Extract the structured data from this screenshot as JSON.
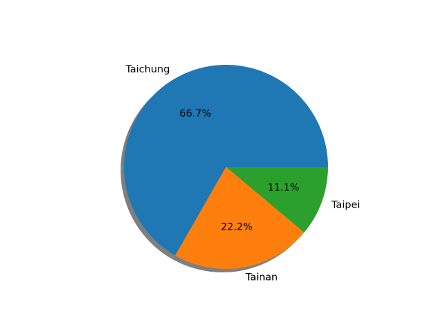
{
  "chart_data": {
    "type": "pie",
    "title": "",
    "slices": [
      {
        "label": "Taichung",
        "value": 66.7,
        "pct_label": "66.7%",
        "color": "#1f77b4"
      },
      {
        "label": "Tainan",
        "value": 22.2,
        "pct_label": "22.2%",
        "color": "#ff7f0e"
      },
      {
        "label": "Taipei",
        "value": 11.1,
        "pct_label": "11.1%",
        "color": "#2ca02c"
      }
    ],
    "start_angle_deg": 0,
    "direction": "counterclockwise",
    "shadow": true,
    "legend": "none"
  }
}
